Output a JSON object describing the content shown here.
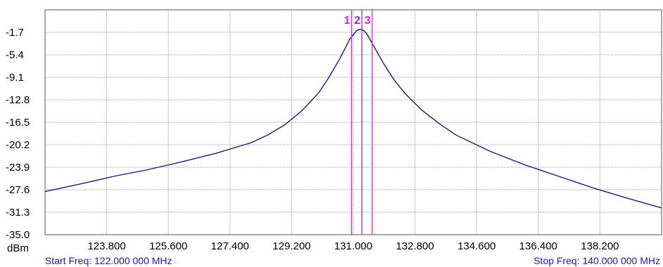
{
  "chart_data": {
    "type": "line",
    "ylabel": "dBm",
    "ylim": [
      -35.0,
      2.0
    ],
    "xlim": [
      122.0,
      140.0
    ],
    "y_ticks": [
      "-1.7",
      "-5.4",
      "-9.1",
      "-12.8",
      "-16.5",
      "-20.2",
      "-23.9",
      "-27.6",
      "-31.3",
      "-35.0"
    ],
    "x_ticks": [
      "123.800",
      "125.600",
      "127.400",
      "129.200",
      "131.000",
      "132.800",
      "134.600",
      "136.400",
      "138.200"
    ],
    "grid": true,
    "start_freq_label": "Start Freq: 122.000 000 MHz",
    "stop_freq_label": "Stop Freq: 140.000 000 MHz",
    "series": [
      {
        "color": "#1c1c7a",
        "x": [
          122.0,
          123.0,
          124.0,
          125.0,
          126.0,
          127.0,
          128.0,
          128.5,
          129.0,
          129.5,
          130.0,
          130.3,
          130.6,
          130.9,
          131.1,
          131.2,
          131.3,
          131.4,
          131.6,
          131.9,
          132.2,
          132.5,
          133.0,
          133.5,
          134.0,
          135.0,
          136.0,
          137.0,
          138.0,
          139.0,
          140.0
        ],
        "y": [
          -27.9,
          -26.7,
          -25.4,
          -24.3,
          -23.0,
          -21.6,
          -19.9,
          -18.6,
          -16.9,
          -14.6,
          -11.6,
          -9.0,
          -6.1,
          -2.8,
          -1.4,
          -1.2,
          -1.4,
          -2.0,
          -4.0,
          -7.0,
          -9.6,
          -11.7,
          -14.5,
          -16.7,
          -18.6,
          -21.3,
          -23.5,
          -25.4,
          -27.3,
          -29.0,
          -30.6
        ]
      }
    ],
    "markers": [
      {
        "label": "1",
        "x": 130.95,
        "color": "#e01ee0"
      },
      {
        "label": "2",
        "x": 131.25,
        "color": "#9a2ad6"
      },
      {
        "label": "3",
        "x": 131.55,
        "color": "#e01ee0"
      }
    ]
  }
}
